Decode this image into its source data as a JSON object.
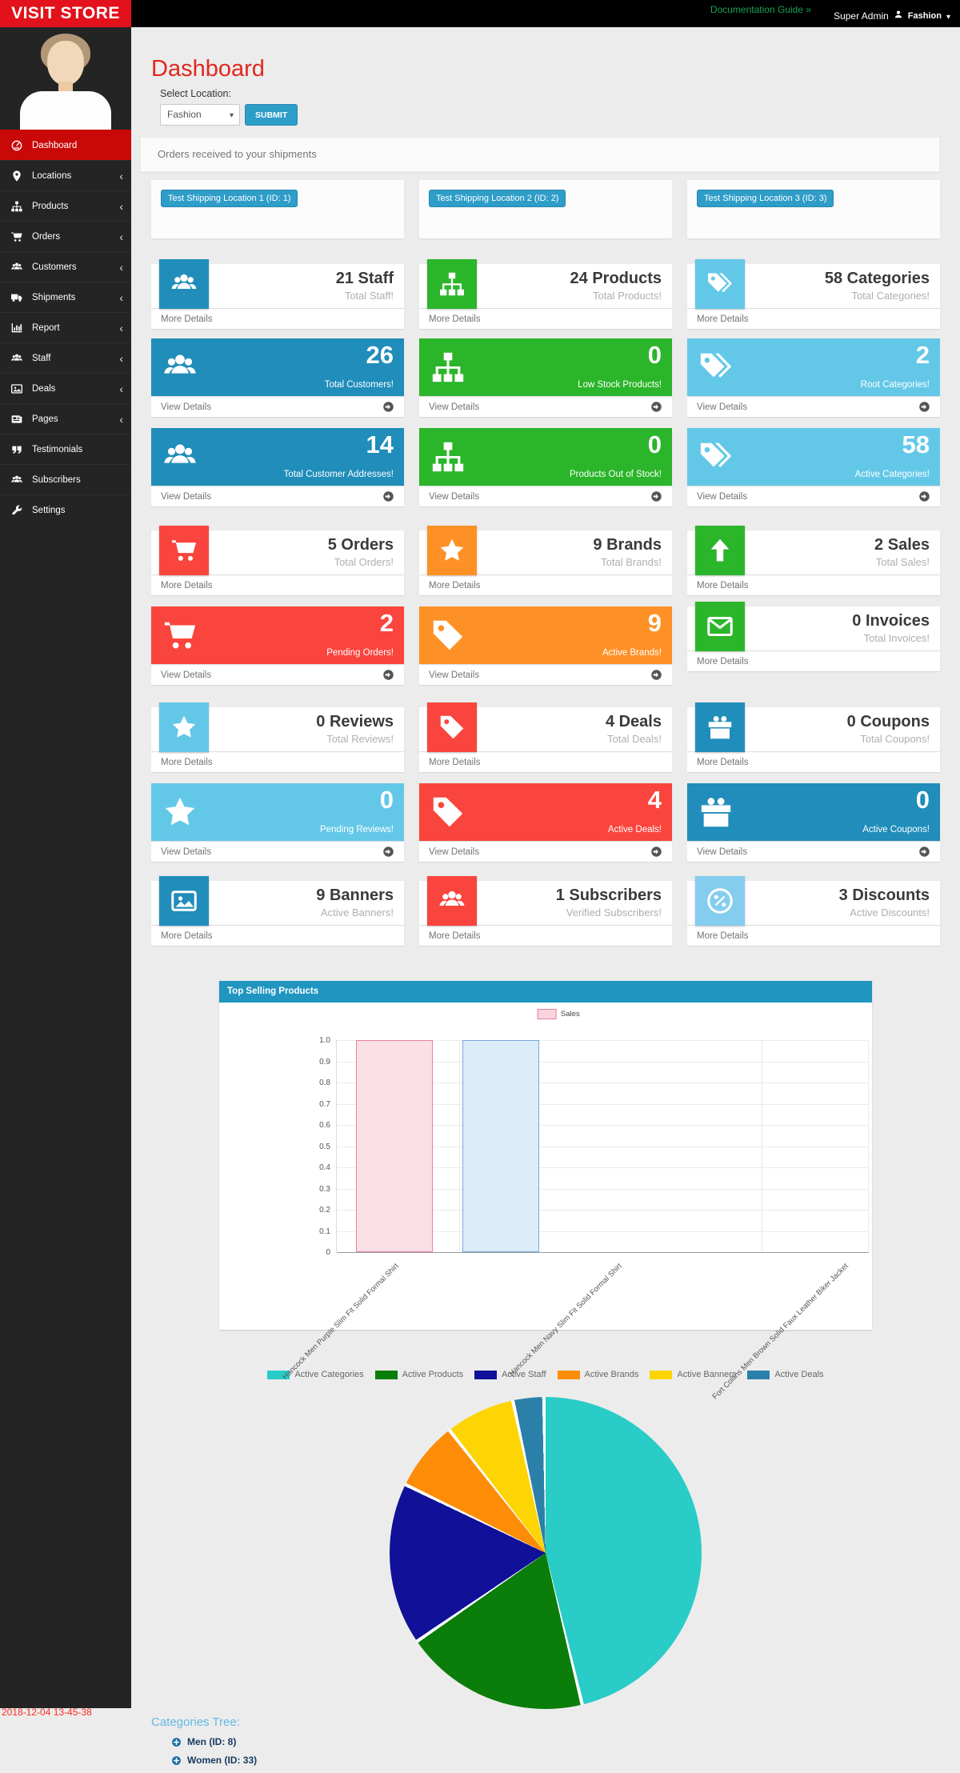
{
  "topbar": {
    "logo": "VISIT STORE",
    "doc_link": "Documentation Guide »",
    "admin_name": "Super Admin",
    "store": "Fashion"
  },
  "sidebar": {
    "items": [
      {
        "label": "Dashboard",
        "icon": "dashboard",
        "active": true,
        "arrow": false
      },
      {
        "label": "Locations",
        "icon": "map-marker",
        "active": false,
        "arrow": true
      },
      {
        "label": "Products",
        "icon": "sitemap",
        "active": false,
        "arrow": true
      },
      {
        "label": "Orders",
        "icon": "cart",
        "active": false,
        "arrow": true
      },
      {
        "label": "Customers",
        "icon": "users",
        "active": false,
        "arrow": true
      },
      {
        "label": "Shipments",
        "icon": "truck",
        "active": false,
        "arrow": true
      },
      {
        "label": "Report",
        "icon": "bar-chart",
        "active": false,
        "arrow": true
      },
      {
        "label": "Staff",
        "icon": "users",
        "active": false,
        "arrow": true
      },
      {
        "label": "Deals",
        "icon": "image",
        "active": false,
        "arrow": true
      },
      {
        "label": "Pages",
        "icon": "newspaper",
        "active": false,
        "arrow": true
      },
      {
        "label": "Testimonials",
        "icon": "quote",
        "active": false,
        "arrow": false
      },
      {
        "label": "Subscribers",
        "icon": "users",
        "active": false,
        "arrow": false
      },
      {
        "label": "Settings",
        "icon": "wrench",
        "active": false,
        "arrow": false
      }
    ]
  },
  "page": {
    "title": "Dashboard",
    "select_label": "Select Location:",
    "location": "Fashion",
    "submit": "SUBMIT"
  },
  "shipments": {
    "heading": "Orders received to your shipments",
    "locations": [
      "Test Shipping Location 1 (ID: 1)",
      "Test Shipping Location 2 (ID: 2)",
      "Test Shipping Location 3 (ID: 3)"
    ]
  },
  "tiles": {
    "rows": [
      [
        {
          "type": "info",
          "icon": "users",
          "accent": "#208dba",
          "value": "21 Staff",
          "sub": "Total Staff!",
          "footer": "More Details"
        },
        {
          "type": "info",
          "icon": "sitemap",
          "accent": "#2bb52a",
          "value": "24 Products",
          "sub": "Total Products!",
          "footer": "More Details"
        },
        {
          "type": "info",
          "icon": "tags",
          "accent": "#63c8e8",
          "value": "58 Categories",
          "sub": "Total Categories!",
          "footer": "More Details"
        }
      ],
      [
        {
          "type": "stat",
          "icon": "users",
          "accent": "#208dba",
          "value": "26",
          "sub": "Total Customers!",
          "footer": "View Details"
        },
        {
          "type": "stat",
          "icon": "sitemap",
          "accent": "#2bb52a",
          "value": "0",
          "sub": "Low Stock Products!",
          "footer": "View Details"
        },
        {
          "type": "stat",
          "icon": "tags",
          "accent": "#63c8e8",
          "value": "2",
          "sub": "Root Categories!",
          "footer": "View Details"
        }
      ],
      [
        {
          "type": "stat",
          "icon": "users",
          "accent": "#208dba",
          "value": "14",
          "sub": "Total Customer Addresses!",
          "footer": "View Details"
        },
        {
          "type": "stat",
          "icon": "sitemap",
          "accent": "#2bb52a",
          "value": "0",
          "sub": "Products Out of Stock!",
          "footer": "View Details"
        },
        {
          "type": "stat",
          "icon": "tags",
          "accent": "#63c8e8",
          "value": "58",
          "sub": "Active Categories!",
          "footer": "View Details"
        }
      ],
      [
        {
          "type": "info",
          "icon": "cart",
          "accent": "#f9453d",
          "value": "5 Orders",
          "sub": "Total Orders!",
          "footer": "More Details"
        },
        {
          "type": "info",
          "icon": "star",
          "accent": "#fe9126",
          "value": "9 Brands",
          "sub": "Total Brands!",
          "footer": "More Details"
        },
        {
          "type": "info",
          "icon": "arrow-up",
          "accent": "#2bb52a",
          "value": "2 Sales",
          "sub": "Total Sales!",
          "footer": "More Details"
        }
      ],
      [
        {
          "type": "stat",
          "icon": "cart",
          "accent": "#f9453d",
          "value": "2",
          "sub": "Pending Orders!",
          "footer": "View Details"
        },
        {
          "type": "stat",
          "icon": "tag",
          "accent": "#fe9126",
          "value": "9",
          "sub": "Active Brands!",
          "footer": "View Details"
        },
        {
          "type": "info",
          "icon": "envelope",
          "accent": "#2bb52a",
          "value": "0 Invoices",
          "sub": "Total Invoices!",
          "footer": "More Details"
        }
      ],
      [
        {
          "type": "info",
          "icon": "star",
          "accent": "#63c8e8",
          "value": "0 Reviews",
          "sub": "Total Reviews!",
          "footer": "More Details"
        },
        {
          "type": "info",
          "icon": "tag",
          "accent": "#f9453d",
          "value": "4 Deals",
          "sub": "Total Deals!",
          "footer": "More Details"
        },
        {
          "type": "info",
          "icon": "gift",
          "accent": "#208dba",
          "value": "0 Coupons",
          "sub": "Total Coupons!",
          "footer": "More Details"
        }
      ],
      [
        {
          "type": "stat",
          "icon": "star",
          "accent": "#63c8e8",
          "value": "0",
          "sub": "Pending Reviews!",
          "footer": "View Details"
        },
        {
          "type": "stat",
          "icon": "tag",
          "accent": "#f9453d",
          "value": "4",
          "sub": "Active Deals!",
          "footer": "View Details"
        },
        {
          "type": "stat",
          "icon": "gift",
          "accent": "#208dba",
          "value": "0",
          "sub": "Active Coupons!",
          "footer": "View Details"
        }
      ],
      [
        {
          "type": "info",
          "icon": "image",
          "accent": "#208dba",
          "value": "9 Banners",
          "sub": "Active Banners!",
          "footer": "More Details"
        },
        {
          "type": "info",
          "icon": "users",
          "accent": "#f9453d",
          "value": "1 Subscribers",
          "sub": "Verified Subscribers!",
          "footer": "More Details"
        },
        {
          "type": "info",
          "icon": "percent",
          "accent": "#85cdef",
          "value": "3 Discounts",
          "sub": "Active Discounts!",
          "footer": "More Details"
        }
      ]
    ]
  },
  "chart_data": [
    {
      "type": "bar",
      "title": "Top Selling Products",
      "categories": [
        "Hancock Men Purple Slim Fit Solid Formal Shirt",
        "Hancock Men Navy Slim Fit Solid Formal Shirt",
        "Fort Collins Men Brown Solid Faux Leather Biker Jacket"
      ],
      "series": [
        {
          "name": "Sales",
          "values": [
            1,
            1,
            0
          ]
        }
      ],
      "xlabel": "",
      "ylabel": "",
      "ylim": [
        0,
        1
      ],
      "yticks": [
        "1.0",
        "0.9",
        "0.8",
        "0.7",
        "0.6",
        "0.5",
        "0.4",
        "0.3",
        "0.2",
        "0.1",
        "0"
      ],
      "grid": true,
      "legend_position": "top",
      "bar_colors": [
        {
          "fill": "#fbdfe7",
          "border": "#e8849c"
        },
        {
          "fill": "#dcecf9",
          "border": "#76a9da"
        },
        {
          "fill": "#fbdfe7",
          "border": "#e8849c"
        }
      ]
    },
    {
      "type": "pie",
      "legend_position": "top",
      "slices": [
        {
          "label": "Active Categories",
          "value": 58,
          "color": "#29ccc7"
        },
        {
          "label": "Active Products",
          "value": 24,
          "color": "#0a7d0a"
        },
        {
          "label": "Active Staff",
          "value": 21,
          "color": "#101099"
        },
        {
          "label": "Active Brands",
          "value": 9,
          "color": "#fd8c06"
        },
        {
          "label": "Active Banners",
          "value": 9,
          "color": "#fdd404"
        },
        {
          "label": "Active Deals",
          "value": 4,
          "color": "#2a80a9"
        }
      ]
    }
  ],
  "categories_tree": {
    "title": "Categories Tree:",
    "items": [
      {
        "label": "Men (ID: 8)"
      },
      {
        "label": "Women (ID: 33)"
      }
    ]
  },
  "timestamp": "2018-12-04 13-45-38"
}
